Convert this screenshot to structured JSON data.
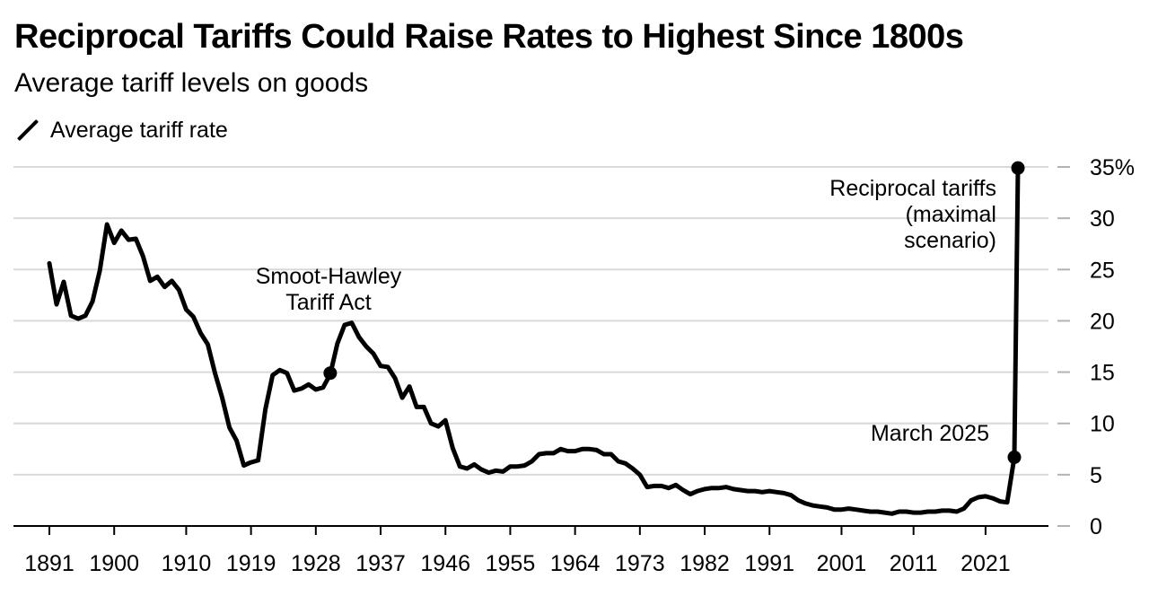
{
  "header": {
    "title": "Reciprocal Tariffs Could Raise Rates to Highest Since 1800s",
    "subtitle": "Average tariff levels on goods"
  },
  "legend": {
    "label": "Average tariff rate"
  },
  "chart_data": {
    "type": "line",
    "title": "Reciprocal Tariffs Could Raise Rates to Highest Since 1800s",
    "subtitle": "Average tariff levels on goods",
    "xlabel": "",
    "ylabel": "",
    "xlim": [
      1891,
      2025
    ],
    "ylim": [
      0,
      35
    ],
    "grid": true,
    "y_axis_side": "right",
    "legend_position": "top-left",
    "x_ticks": [
      1891,
      1900,
      1910,
      1919,
      1928,
      1937,
      1946,
      1955,
      1964,
      1973,
      1982,
      1991,
      2001,
      2011,
      2021
    ],
    "x_tick_labels": [
      "1891",
      "1900",
      "1910",
      "1919",
      "1928",
      "1937",
      "1946",
      "1955",
      "1964",
      "1973",
      "1982",
      "1991",
      "2001",
      "2011",
      "2021"
    ],
    "y_ticks": [
      0,
      5,
      10,
      15,
      20,
      25,
      30,
      35
    ],
    "y_tick_labels": [
      "0",
      "5",
      "10",
      "15",
      "20",
      "25",
      "30",
      "35%"
    ],
    "line_color": "#000000",
    "series": [
      {
        "name": "Average tariff rate",
        "x": [
          1891,
          1892,
          1893,
          1894,
          1895,
          1896,
          1897,
          1898,
          1899,
          1900,
          1901,
          1902,
          1903,
          1904,
          1905,
          1906,
          1907,
          1908,
          1909,
          1910,
          1911,
          1912,
          1913,
          1914,
          1915,
          1916,
          1917,
          1918,
          1919,
          1920,
          1921,
          1922,
          1923,
          1924,
          1925,
          1926,
          1927,
          1928,
          1929,
          1930,
          1931,
          1932,
          1933,
          1934,
          1935,
          1936,
          1937,
          1938,
          1939,
          1940,
          1941,
          1942,
          1943,
          1944,
          1945,
          1946,
          1947,
          1948,
          1949,
          1950,
          1951,
          1952,
          1953,
          1954,
          1955,
          1956,
          1957,
          1958,
          1959,
          1960,
          1961,
          1962,
          1963,
          1964,
          1965,
          1966,
          1967,
          1968,
          1969,
          1970,
          1971,
          1972,
          1973,
          1974,
          1975,
          1976,
          1977,
          1978,
          1979,
          1980,
          1981,
          1982,
          1983,
          1984,
          1985,
          1986,
          1987,
          1988,
          1989,
          1990,
          1991,
          1992,
          1993,
          1994,
          1995,
          1996,
          1997,
          1998,
          1999,
          2000,
          2001,
          2002,
          2003,
          2004,
          2005,
          2006,
          2007,
          2008,
          2009,
          2010,
          2011,
          2012,
          2013,
          2014,
          2015,
          2016,
          2017,
          2018,
          2019,
          2020,
          2021,
          2022,
          2023,
          2024,
          2025
        ],
        "y": [
          25.6,
          21.6,
          23.8,
          20.5,
          20.2,
          20.5,
          21.9,
          24.9,
          29.4,
          27.6,
          28.8,
          27.9,
          28.0,
          26.3,
          23.9,
          24.3,
          23.3,
          23.9,
          23.0,
          21.1,
          20.4,
          18.8,
          17.7,
          14.9,
          12.5,
          9.6,
          8.3,
          5.9,
          6.2,
          6.4,
          11.4,
          14.7,
          15.2,
          14.9,
          13.2,
          13.4,
          13.8,
          13.3,
          13.5,
          14.8,
          17.8,
          19.6,
          19.8,
          18.4,
          17.5,
          16.8,
          15.6,
          15.5,
          14.4,
          12.5,
          13.6,
          11.6,
          11.6,
          10.0,
          9.7,
          10.3,
          7.6,
          5.8,
          5.6,
          6.0,
          5.5,
          5.2,
          5.4,
          5.3,
          5.8,
          5.8,
          5.9,
          6.3,
          7.0,
          7.1,
          7.1,
          7.5,
          7.3,
          7.3,
          7.5,
          7.5,
          7.4,
          7.0,
          7.0,
          6.3,
          6.1,
          5.6,
          5.0,
          3.8,
          3.9,
          3.9,
          3.7,
          4.0,
          3.5,
          3.1,
          3.4,
          3.6,
          3.7,
          3.7,
          3.8,
          3.6,
          3.5,
          3.4,
          3.4,
          3.3,
          3.4,
          3.3,
          3.2,
          3.0,
          2.5,
          2.2,
          2.0,
          1.9,
          1.8,
          1.6,
          1.6,
          1.7,
          1.6,
          1.5,
          1.4,
          1.4,
          1.3,
          1.2,
          1.4,
          1.4,
          1.3,
          1.3,
          1.4,
          1.4,
          1.5,
          1.5,
          1.4,
          1.7,
          2.5,
          2.8,
          2.9,
          2.7,
          2.4,
          2.3,
          6.7
        ]
      }
    ],
    "endpoint": {
      "x": 2025.5,
      "y": 34.9
    },
    "markers": [
      {
        "x": 1930,
        "y": 14.9
      },
      {
        "x": 2025,
        "y": 6.7
      },
      {
        "x": 2025.5,
        "y": 34.9
      }
    ],
    "annotations": [
      {
        "lines": [
          "Smoot-Hawley",
          "Tariff Act"
        ],
        "x": 1930,
        "y": 14.9
      },
      {
        "lines": [
          "March 2025"
        ],
        "x": 2025,
        "y": 6.7
      },
      {
        "lines": [
          "Reciprocal tariffs",
          "(maximal",
          "scenario)"
        ],
        "x": 2025.5,
        "y": 34.9
      }
    ]
  }
}
